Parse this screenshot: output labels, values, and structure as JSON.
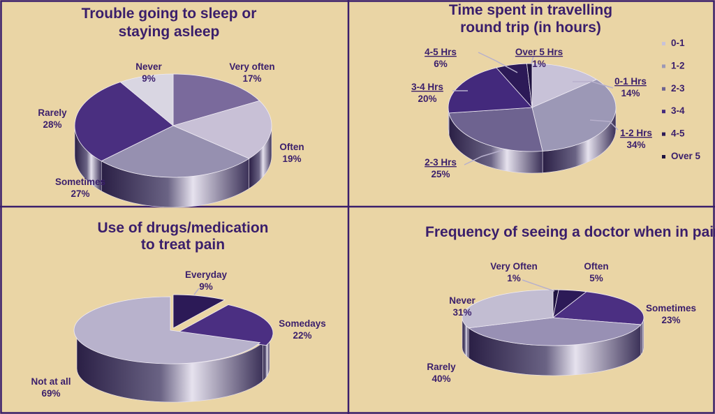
{
  "chart_data": [
    {
      "type": "pie",
      "title": "Trouble going to sleep or staying asleep",
      "title_lines": [
        "Trouble going to sleep or",
        "staying asleep"
      ],
      "categories": [
        "Very often",
        "Often",
        "Sometimes",
        "Rarely",
        "Never"
      ],
      "values": [
        17,
        19,
        27,
        28,
        9
      ],
      "value_labels": [
        "17%",
        "19%",
        "27%",
        "28%",
        "9%"
      ],
      "colors": [
        "#7a6a9c",
        "#c8c0d6",
        "#9690b0",
        "#4a2f80",
        "#d9d6e2"
      ],
      "legend": false
    },
    {
      "type": "pie",
      "title": "Time spent in travelling round trip (in hours)",
      "title_lines": [
        "Time spent in travelling",
        "round trip (in hours)"
      ],
      "categories": [
        "0-1 Hrs",
        "1-2 Hrs",
        "2-3 Hrs",
        "3-4 Hrs",
        "4-5 Hrs",
        "Over 5 Hrs"
      ],
      "values": [
        14,
        34,
        25,
        20,
        6,
        1
      ],
      "value_labels": [
        "14%",
        "34%",
        "25%",
        "20%",
        "6%",
        "1%"
      ],
      "legend_entries": [
        "0-1",
        "1-2",
        "2-3",
        "3-4",
        "4-5",
        "Over 5"
      ],
      "colors": [
        "#c8c2d8",
        "#9c98b6",
        "#6e6390",
        "#43297c",
        "#2c1a57",
        "#1e1240"
      ],
      "legend": "right"
    },
    {
      "type": "pie",
      "title": "Use of drugs/medication to treat pain",
      "title_lines": [
        "Use of drugs/medication",
        "to treat pain"
      ],
      "categories": [
        "Everyday",
        "Somedays",
        "Not at all"
      ],
      "values": [
        9,
        22,
        69
      ],
      "value_labels": [
        "9%",
        "22%",
        "69%"
      ],
      "colors": [
        "#2c1a57",
        "#4b2f82",
        "#b8b2cc"
      ],
      "legend": false
    },
    {
      "type": "pie",
      "title": "Frequency of seeing a doctor when in pain",
      "title_lines": [
        "Frequency of seeing a doctor when in pain"
      ],
      "categories": [
        "Very Often",
        "Often",
        "Sometimes",
        "Rarely",
        "Never"
      ],
      "values": [
        1,
        5,
        23,
        40,
        31
      ],
      "value_labels": [
        "1%",
        "5%",
        "23%",
        "40%",
        "31%"
      ],
      "colors": [
        "#1e1240",
        "#2c1a57",
        "#4b2f82",
        "#9890b4",
        "#c2bdd2"
      ],
      "legend": false
    }
  ]
}
